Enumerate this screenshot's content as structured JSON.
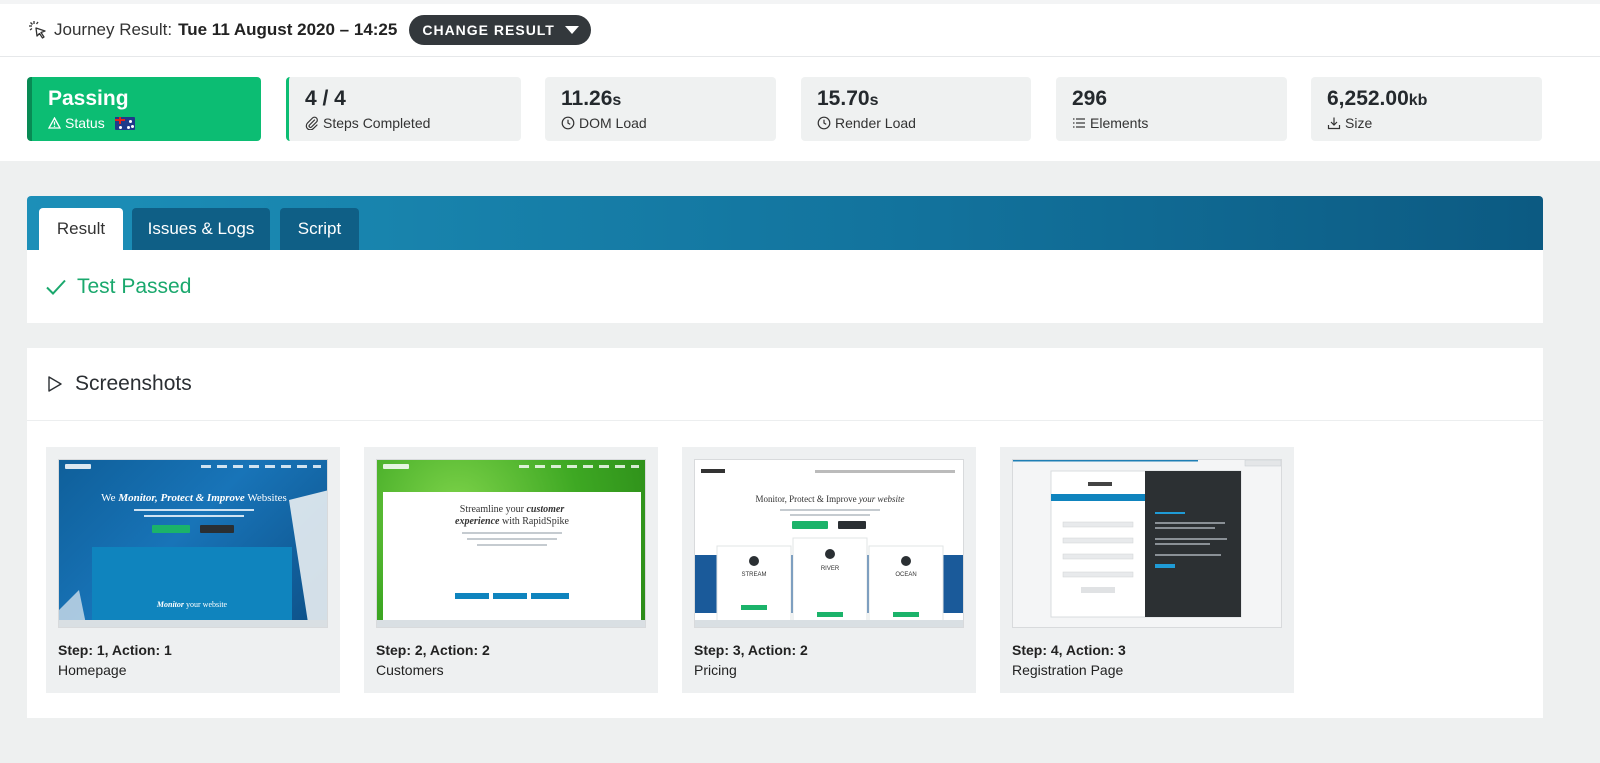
{
  "header": {
    "journey_label": "Journey Result:",
    "journey_value": "Tue 11 August 2020 – 14:25",
    "change_button": "CHANGE RESULT"
  },
  "stats": [
    {
      "value": "Passing",
      "unit": "",
      "label": "Status",
      "icon": "warning-triangle-icon"
    },
    {
      "value": "4 / 4",
      "unit": "",
      "label": "Steps Completed",
      "icon": "paperclip-icon"
    },
    {
      "value": "11.26",
      "unit": "s",
      "label": "DOM Load",
      "icon": "clock-icon"
    },
    {
      "value": "15.70",
      "unit": "s",
      "label": "Render Load",
      "icon": "clock-icon"
    },
    {
      "value": "296",
      "unit": "",
      "label": "Elements",
      "icon": "list-icon"
    },
    {
      "value": "6,252.00",
      "unit": "kb",
      "label": "Size",
      "icon": "download-icon"
    }
  ],
  "tabs": [
    {
      "label": "Result",
      "active": true
    },
    {
      "label": "Issues & Logs",
      "active": false
    },
    {
      "label": "Script",
      "active": false
    }
  ],
  "result": {
    "text": "Test Passed",
    "color": "#1aa86d"
  },
  "screenshots": {
    "title": "Screenshots",
    "items": [
      {
        "step": "Step: 1, Action: 1",
        "name": "Homepage"
      },
      {
        "step": "Step: 2, Action: 2",
        "name": "Customers"
      },
      {
        "step": "Step: 3, Action: 2",
        "name": "Pricing"
      },
      {
        "step": "Step: 4, Action: 3",
        "name": "Registration Page"
      }
    ]
  },
  "colors": {
    "passing_green": "#0cbd73",
    "tab_blue": "#12729c",
    "dark_button": "#33383c"
  }
}
